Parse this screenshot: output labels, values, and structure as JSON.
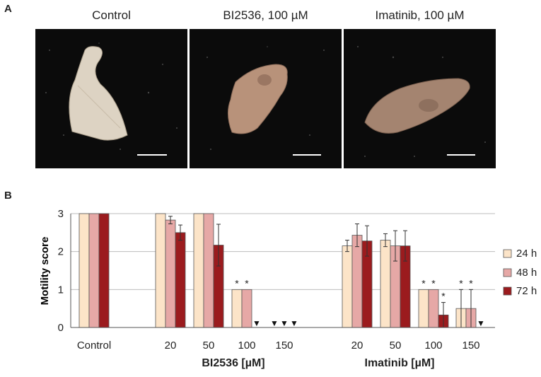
{
  "panel_a": {
    "letter": "A",
    "photos": [
      {
        "title": "Control",
        "worm_color": "#e8dcc8"
      },
      {
        "title": "BI2536, 100 µM",
        "worm_color": "#b58f77"
      },
      {
        "title": "Imatinib, 100 µM",
        "worm_color": "#a3826b"
      }
    ]
  },
  "panel_b": {
    "letter": "B"
  },
  "chart_data": {
    "type": "bar",
    "ylabel": "Motility score",
    "ylim": [
      0,
      3
    ],
    "yticks": [
      "0",
      "1",
      "2",
      "3"
    ],
    "categories": [
      "Control",
      "20",
      "50",
      "100",
      "150",
      "20",
      "50",
      "100",
      "150"
    ],
    "groups": [
      {
        "label": "BI2536 [µM]",
        "category_indices": [
          1,
          2,
          3,
          4
        ]
      },
      {
        "label": "Imatinib [µM]",
        "category_indices": [
          5,
          6,
          7,
          8
        ]
      }
    ],
    "series": [
      {
        "name": "24 h",
        "color": "#fce4c8",
        "values": [
          3,
          3,
          3,
          1,
          0,
          2.15,
          2.3,
          1,
          0.5
        ],
        "errors": [
          0,
          0,
          0,
          0,
          0,
          0.15,
          0.17,
          0,
          0.5
        ]
      },
      {
        "name": "48 h",
        "color": "#e6a8a6",
        "values": [
          3,
          2.83,
          3,
          1,
          0,
          2.43,
          2.15,
          1,
          0.5
        ],
        "errors": [
          0,
          0.1,
          0,
          0,
          0,
          0.3,
          0.4,
          0,
          0.5
        ]
      },
      {
        "name": "72 h",
        "color": "#9b1b1e",
        "values": [
          3,
          2.5,
          2.17,
          0,
          0,
          2.28,
          2.15,
          0.33,
          0
        ],
        "errors": [
          0,
          0.2,
          0.55,
          0,
          0,
          0.4,
          0.4,
          0.33,
          0
        ]
      }
    ],
    "asterisks": [
      {
        "category": 3,
        "series": 0,
        "text": "*"
      },
      {
        "category": 3,
        "series": 1,
        "text": "*"
      },
      {
        "category": 7,
        "series": 0,
        "text": "*"
      },
      {
        "category": 7,
        "series": 1,
        "text": "*"
      },
      {
        "category": 7,
        "series": 2,
        "text": "*"
      },
      {
        "category": 8,
        "series": 0,
        "text": "*"
      },
      {
        "category": 8,
        "series": 1,
        "text": "*"
      }
    ],
    "triangles": [
      {
        "category": 3,
        "series": 2,
        "text": "▼"
      },
      {
        "category": 4,
        "series": 0,
        "text": "▼"
      },
      {
        "category": 4,
        "series": 1,
        "text": "▼"
      },
      {
        "category": 4,
        "series": 2,
        "text": "▼"
      },
      {
        "category": 8,
        "series": 2,
        "text": "▼"
      }
    ],
    "grid": true,
    "legend_position": "right"
  }
}
